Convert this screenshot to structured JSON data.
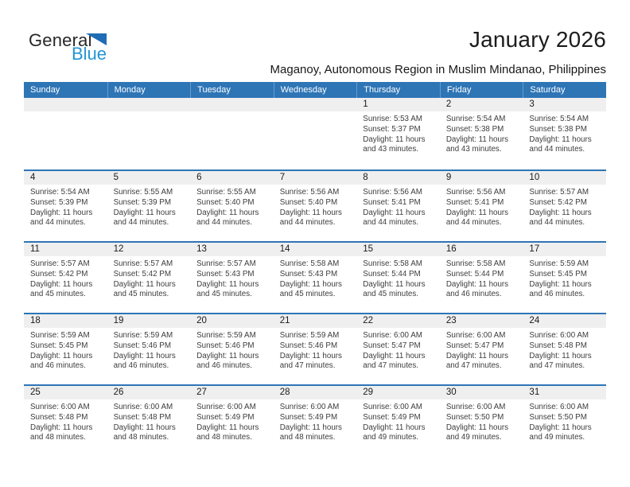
{
  "logo": {
    "general": "General",
    "blue": "Blue"
  },
  "header": {
    "title": "January 2026",
    "subtitle": "Maganoy, Autonomous Region in Muslim Mindanao, Philippines"
  },
  "colors": {
    "header_blue": "#2e75b6",
    "divider_blue": "#2e75b6",
    "band_gray": "#efefef",
    "logo_blue": "#2494d4",
    "logo_triangle": "#1f6db4"
  },
  "calendar": {
    "day_headers": [
      "Sunday",
      "Monday",
      "Tuesday",
      "Wednesday",
      "Thursday",
      "Friday",
      "Saturday"
    ],
    "weeks": [
      {
        "days": [
          null,
          null,
          null,
          null,
          {
            "date": "1",
            "sunrise": "Sunrise: 5:53 AM",
            "sunset": "Sunset: 5:37 PM",
            "daylight": "Daylight: 11 hours and 43 minutes."
          },
          {
            "date": "2",
            "sunrise": "Sunrise: 5:54 AM",
            "sunset": "Sunset: 5:38 PM",
            "daylight": "Daylight: 11 hours and 43 minutes."
          },
          {
            "date": "3",
            "sunrise": "Sunrise: 5:54 AM",
            "sunset": "Sunset: 5:38 PM",
            "daylight": "Daylight: 11 hours and 44 minutes."
          }
        ]
      },
      {
        "days": [
          {
            "date": "4",
            "sunrise": "Sunrise: 5:54 AM",
            "sunset": "Sunset: 5:39 PM",
            "daylight": "Daylight: 11 hours and 44 minutes."
          },
          {
            "date": "5",
            "sunrise": "Sunrise: 5:55 AM",
            "sunset": "Sunset: 5:39 PM",
            "daylight": "Daylight: 11 hours and 44 minutes."
          },
          {
            "date": "6",
            "sunrise": "Sunrise: 5:55 AM",
            "sunset": "Sunset: 5:40 PM",
            "daylight": "Daylight: 11 hours and 44 minutes."
          },
          {
            "date": "7",
            "sunrise": "Sunrise: 5:56 AM",
            "sunset": "Sunset: 5:40 PM",
            "daylight": "Daylight: 11 hours and 44 minutes."
          },
          {
            "date": "8",
            "sunrise": "Sunrise: 5:56 AM",
            "sunset": "Sunset: 5:41 PM",
            "daylight": "Daylight: 11 hours and 44 minutes."
          },
          {
            "date": "9",
            "sunrise": "Sunrise: 5:56 AM",
            "sunset": "Sunset: 5:41 PM",
            "daylight": "Daylight: 11 hours and 44 minutes."
          },
          {
            "date": "10",
            "sunrise": "Sunrise: 5:57 AM",
            "sunset": "Sunset: 5:42 PM",
            "daylight": "Daylight: 11 hours and 44 minutes."
          }
        ]
      },
      {
        "days": [
          {
            "date": "11",
            "sunrise": "Sunrise: 5:57 AM",
            "sunset": "Sunset: 5:42 PM",
            "daylight": "Daylight: 11 hours and 45 minutes."
          },
          {
            "date": "12",
            "sunrise": "Sunrise: 5:57 AM",
            "sunset": "Sunset: 5:42 PM",
            "daylight": "Daylight: 11 hours and 45 minutes."
          },
          {
            "date": "13",
            "sunrise": "Sunrise: 5:57 AM",
            "sunset": "Sunset: 5:43 PM",
            "daylight": "Daylight: 11 hours and 45 minutes."
          },
          {
            "date": "14",
            "sunrise": "Sunrise: 5:58 AM",
            "sunset": "Sunset: 5:43 PM",
            "daylight": "Daylight: 11 hours and 45 minutes."
          },
          {
            "date": "15",
            "sunrise": "Sunrise: 5:58 AM",
            "sunset": "Sunset: 5:44 PM",
            "daylight": "Daylight: 11 hours and 45 minutes."
          },
          {
            "date": "16",
            "sunrise": "Sunrise: 5:58 AM",
            "sunset": "Sunset: 5:44 PM",
            "daylight": "Daylight: 11 hours and 46 minutes."
          },
          {
            "date": "17",
            "sunrise": "Sunrise: 5:59 AM",
            "sunset": "Sunset: 5:45 PM",
            "daylight": "Daylight: 11 hours and 46 minutes."
          }
        ]
      },
      {
        "days": [
          {
            "date": "18",
            "sunrise": "Sunrise: 5:59 AM",
            "sunset": "Sunset: 5:45 PM",
            "daylight": "Daylight: 11 hours and 46 minutes."
          },
          {
            "date": "19",
            "sunrise": "Sunrise: 5:59 AM",
            "sunset": "Sunset: 5:46 PM",
            "daylight": "Daylight: 11 hours and 46 minutes."
          },
          {
            "date": "20",
            "sunrise": "Sunrise: 5:59 AM",
            "sunset": "Sunset: 5:46 PM",
            "daylight": "Daylight: 11 hours and 46 minutes."
          },
          {
            "date": "21",
            "sunrise": "Sunrise: 5:59 AM",
            "sunset": "Sunset: 5:46 PM",
            "daylight": "Daylight: 11 hours and 47 minutes."
          },
          {
            "date": "22",
            "sunrise": "Sunrise: 6:00 AM",
            "sunset": "Sunset: 5:47 PM",
            "daylight": "Daylight: 11 hours and 47 minutes."
          },
          {
            "date": "23",
            "sunrise": "Sunrise: 6:00 AM",
            "sunset": "Sunset: 5:47 PM",
            "daylight": "Daylight: 11 hours and 47 minutes."
          },
          {
            "date": "24",
            "sunrise": "Sunrise: 6:00 AM",
            "sunset": "Sunset: 5:48 PM",
            "daylight": "Daylight: 11 hours and 47 minutes."
          }
        ]
      },
      {
        "days": [
          {
            "date": "25",
            "sunrise": "Sunrise: 6:00 AM",
            "sunset": "Sunset: 5:48 PM",
            "daylight": "Daylight: 11 hours and 48 minutes."
          },
          {
            "date": "26",
            "sunrise": "Sunrise: 6:00 AM",
            "sunset": "Sunset: 5:48 PM",
            "daylight": "Daylight: 11 hours and 48 minutes."
          },
          {
            "date": "27",
            "sunrise": "Sunrise: 6:00 AM",
            "sunset": "Sunset: 5:49 PM",
            "daylight": "Daylight: 11 hours and 48 minutes."
          },
          {
            "date": "28",
            "sunrise": "Sunrise: 6:00 AM",
            "sunset": "Sunset: 5:49 PM",
            "daylight": "Daylight: 11 hours and 48 minutes."
          },
          {
            "date": "29",
            "sunrise": "Sunrise: 6:00 AM",
            "sunset": "Sunset: 5:49 PM",
            "daylight": "Daylight: 11 hours and 49 minutes."
          },
          {
            "date": "30",
            "sunrise": "Sunrise: 6:00 AM",
            "sunset": "Sunset: 5:50 PM",
            "daylight": "Daylight: 11 hours and 49 minutes."
          },
          {
            "date": "31",
            "sunrise": "Sunrise: 6:00 AM",
            "sunset": "Sunset: 5:50 PM",
            "daylight": "Daylight: 11 hours and 49 minutes."
          }
        ]
      }
    ]
  }
}
